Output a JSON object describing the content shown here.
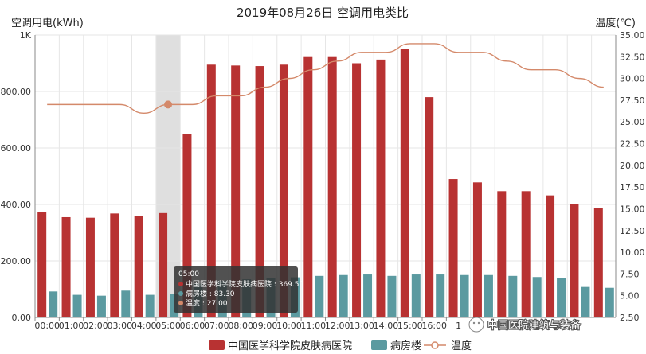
{
  "chart_data": {
    "type": "bar",
    "title": "2019年08月26日 空调用电类比",
    "ylabel_left": "空调用电(kWh)",
    "ylabel_right": "温度(℃)",
    "ylim_left": [
      0,
      1000
    ],
    "ylim_right": [
      2.5,
      35
    ],
    "yticks_left": [
      "0.00",
      "200.00",
      "400.00",
      "600.00",
      "800.00",
      "1K"
    ],
    "yticks_right": [
      "2.50",
      "5.00",
      "7.50",
      "10.00",
      "12.50",
      "15.00",
      "17.50",
      "20.00",
      "22.50",
      "25.00",
      "27.50",
      "30.00",
      "32.50",
      "35.00"
    ],
    "categories": [
      "00:00",
      "01:00",
      "02:00",
      "03:00",
      "04:00",
      "05:00",
      "06:00",
      "07:00",
      "08:00",
      "09:00",
      "10:00",
      "11:00",
      "12:00",
      "13:00",
      "14:00",
      "15:00",
      "16:00",
      "17:00",
      "18:00",
      "19:00",
      "20:00",
      "21:00",
      "22:00",
      "23:00"
    ],
    "xtick_labels": [
      "00:00",
      "01:00",
      "02:00",
      "03:00",
      "04:00",
      "05:00",
      "06:00",
      "07:00",
      "08:00",
      "09:00",
      "10:00",
      "11:00",
      "12:00",
      "13:00",
      "14:00",
      "15:00",
      "16:00",
      "1"
    ],
    "series": [
      {
        "name": "中国医学科学院皮肤病医院",
        "type": "bar",
        "color": "#b83232",
        "values": [
          373,
          355,
          353,
          368,
          358,
          369.5,
          650,
          895,
          892,
          890,
          895,
          922,
          922,
          900,
          913,
          950,
          780,
          490,
          478,
          447,
          447,
          432,
          400,
          388
        ]
      },
      {
        "name": "病房楼",
        "type": "bar",
        "color": "#5b9aa0",
        "values": [
          92,
          80,
          77,
          95,
          80,
          83.3,
          120,
          130,
          135,
          140,
          142,
          147,
          150,
          152,
          147,
          152,
          152,
          150,
          150,
          147,
          143,
          140,
          108,
          105
        ]
      },
      {
        "name": "温度",
        "type": "line",
        "color": "#d4896a",
        "values": [
          27,
          27,
          27,
          27,
          26,
          27,
          27,
          28,
          28,
          29,
          30,
          31,
          32,
          33,
          33,
          34,
          34,
          33,
          33,
          32,
          31,
          31,
          30,
          29
        ]
      }
    ],
    "highlight_index": 5,
    "legend_position": "bottom-center",
    "grid": true
  },
  "tooltip": {
    "time": "05:00",
    "lines": [
      "中国医学科学院皮肤病医院 : 369.50",
      "病房楼 : 83.30",
      "温度 : 27.00"
    ]
  },
  "watermark": "中国医院建筑与装备"
}
